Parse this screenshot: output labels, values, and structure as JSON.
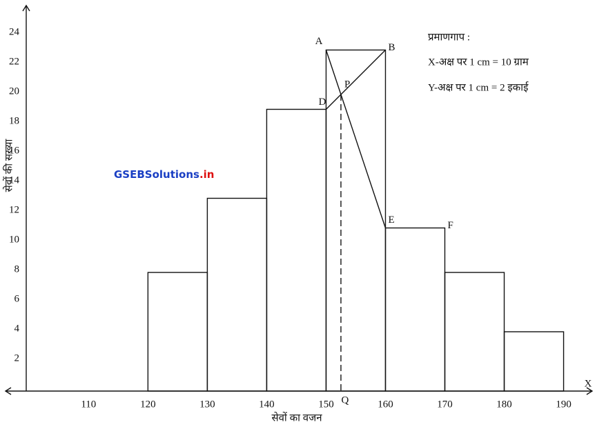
{
  "chart_data": {
    "type": "histogram",
    "bins": [
      120,
      130,
      140,
      150,
      160,
      170,
      180,
      190
    ],
    "counts": [
      8,
      13,
      19,
      23,
      11,
      8,
      4
    ],
    "xlim": [
      99.5,
      194
    ],
    "ylim": [
      0,
      26
    ],
    "xticks": [
      110,
      120,
      130,
      140,
      150,
      160,
      170,
      180,
      190
    ],
    "yticks": [
      2,
      4,
      6,
      8,
      10,
      12,
      14,
      16,
      18,
      20,
      22,
      24
    ],
    "x_label": "सेवों का वजन",
    "y_label": "सेवों की सख्या",
    "x_axis_name": "X",
    "points": [
      {
        "label": "A",
        "x": 150,
        "y": 23
      },
      {
        "label": "B",
        "x": 160,
        "y": 23
      },
      {
        "label": "D",
        "x": 150,
        "y": 19
      },
      {
        "label": "P",
        "x": 152.5,
        "y": 20
      },
      {
        "label": "E",
        "x": 160,
        "y": 11
      },
      {
        "label": "F",
        "x": 170,
        "y": 11
      },
      {
        "label": "Q",
        "x": 152.5,
        "y": 0
      }
    ],
    "scale_title": "प्रमाणगाप :",
    "scale_lines": [
      "X-अक्ष पर 1 cm  = 10 ग्राम",
      "Y-अक्ष पर 1 cm  = 2 इकाई"
    ],
    "watermark": [
      "GSEBSolutions",
      ".in"
    ]
  }
}
